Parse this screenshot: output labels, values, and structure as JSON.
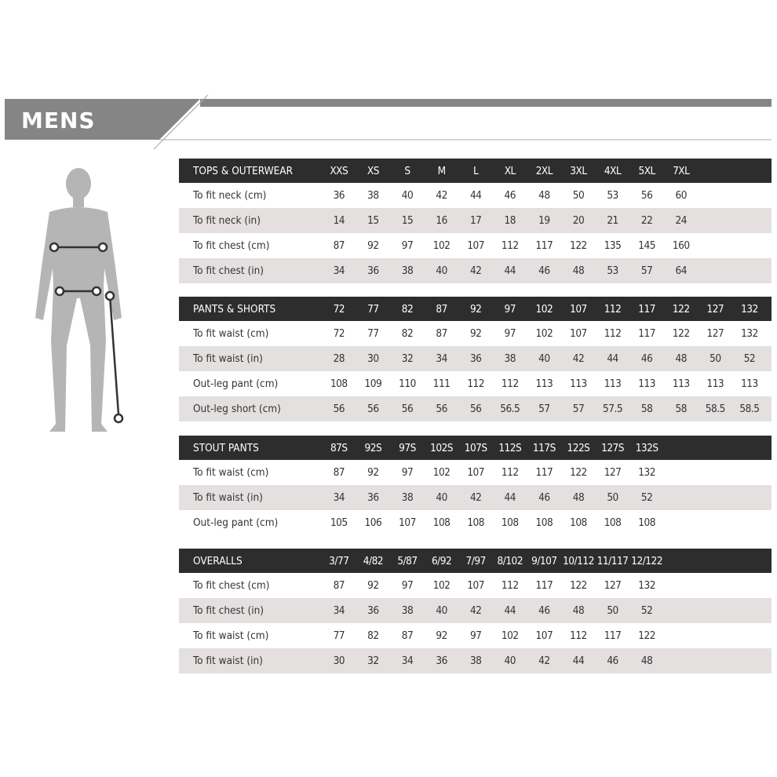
{
  "title": "MENS",
  "colors": {
    "banner": "#858585",
    "header_row": "#2d2d2d",
    "alt_row": "#e4e0e0",
    "figure": "#b5b5b5"
  },
  "sections": [
    {
      "header": "TOPS & OUTERWEAR",
      "sizes": [
        "XXS",
        "XS",
        "S",
        "M",
        "L",
        "XL",
        "2XL",
        "3XL",
        "4XL",
        "5XL",
        "7XL"
      ],
      "rows": [
        {
          "label": "To fit neck (cm)",
          "values": [
            "36",
            "38",
            "40",
            "42",
            "44",
            "46",
            "48",
            "50",
            "53",
            "56",
            "60"
          ]
        },
        {
          "label": "To fit neck (in)",
          "values": [
            "14",
            "15",
            "15",
            "16",
            "17",
            "18",
            "19",
            "20",
            "21",
            "22",
            "24"
          ]
        },
        {
          "label": "To fit chest (cm)",
          "values": [
            "87",
            "92",
            "97",
            "102",
            "107",
            "112",
            "117",
            "122",
            "135",
            "145",
            "160"
          ]
        },
        {
          "label": "To fit chest (in)",
          "values": [
            "34",
            "36",
            "38",
            "40",
            "42",
            "44",
            "46",
            "48",
            "53",
            "57",
            "64"
          ]
        }
      ]
    },
    {
      "header": "PANTS & SHORTS",
      "sizes": [
        "72",
        "77",
        "82",
        "87",
        "92",
        "97",
        "102",
        "107",
        "112",
        "117",
        "122",
        "127",
        "132"
      ],
      "rows": [
        {
          "label": "To fit waist (cm)",
          "values": [
            "72",
            "77",
            "82",
            "87",
            "92",
            "97",
            "102",
            "107",
            "112",
            "117",
            "122",
            "127",
            "132"
          ]
        },
        {
          "label": "To fit waist (in)",
          "values": [
            "28",
            "30",
            "32",
            "34",
            "36",
            "38",
            "40",
            "42",
            "44",
            "46",
            "48",
            "50",
            "52"
          ]
        },
        {
          "label": "Out-leg pant (cm)",
          "values": [
            "108",
            "109",
            "110",
            "111",
            "112",
            "112",
            "113",
            "113",
            "113",
            "113",
            "113",
            "113",
            "113"
          ]
        },
        {
          "label": "Out-leg short (cm)",
          "values": [
            "56",
            "56",
            "56",
            "56",
            "56",
            "56.5",
            "57",
            "57",
            "57.5",
            "58",
            "58",
            "58.5",
            "58.5"
          ]
        }
      ]
    },
    {
      "header": "STOUT PANTS",
      "sizes": [
        "87S",
        "92S",
        "97S",
        "102S",
        "107S",
        "112S",
        "117S",
        "122S",
        "127S",
        "132S"
      ],
      "rows": [
        {
          "label": "To fit waist (cm)",
          "values": [
            "87",
            "92",
            "97",
            "102",
            "107",
            "112",
            "117",
            "122",
            "127",
            "132"
          ]
        },
        {
          "label": "To fit waist (in)",
          "values": [
            "34",
            "36",
            "38",
            "40",
            "42",
            "44",
            "46",
            "48",
            "50",
            "52"
          ]
        },
        {
          "label": "Out-leg pant (cm)",
          "values": [
            "105",
            "106",
            "107",
            "108",
            "108",
            "108",
            "108",
            "108",
            "108",
            "108"
          ]
        }
      ]
    },
    {
      "header": "OVERALLS",
      "sizes": [
        "3/77",
        "4/82",
        "5/87",
        "6/92",
        "7/97",
        "8/102",
        "9/107",
        "10/112",
        "11/117",
        "12/122"
      ],
      "rows": [
        {
          "label": "To fit chest (cm)",
          "values": [
            "87",
            "92",
            "97",
            "102",
            "107",
            "112",
            "117",
            "122",
            "127",
            "132"
          ]
        },
        {
          "label": "To fit chest (in)",
          "values": [
            "34",
            "36",
            "38",
            "40",
            "42",
            "44",
            "46",
            "48",
            "50",
            "52"
          ]
        },
        {
          "label": "To fit waist (cm)",
          "values": [
            "77",
            "82",
            "87",
            "92",
            "97",
            "102",
            "107",
            "112",
            "117",
            "122"
          ]
        },
        {
          "label": "To fit waist (in)",
          "values": [
            "30",
            "32",
            "34",
            "36",
            "38",
            "40",
            "42",
            "44",
            "46",
            "48"
          ]
        }
      ]
    }
  ]
}
